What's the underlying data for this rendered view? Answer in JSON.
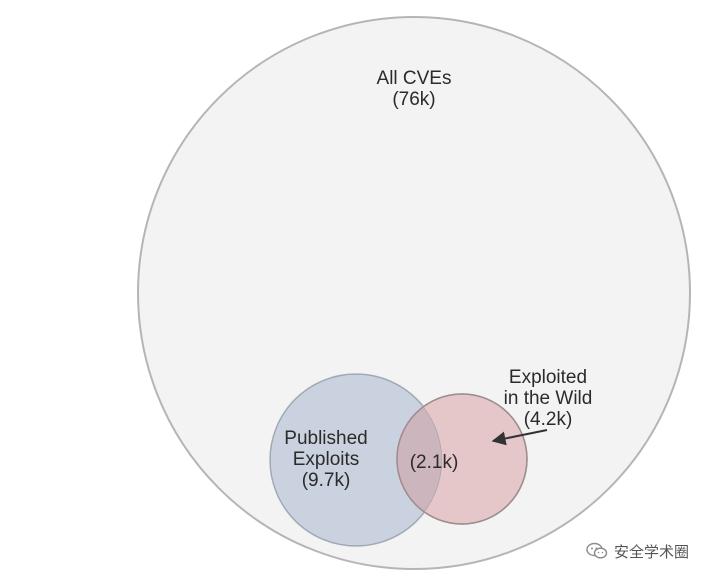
{
  "colors": {
    "outer_fill": "#f3f3f3",
    "outer_stroke": "#b5b5b5",
    "published_fill": "#c9d2de",
    "published_stroke": "#a9b1bc",
    "wild_fill": "#e5c7c9",
    "wild_stroke": "#b4a1a2",
    "overlap_fill": "#cdb5bd",
    "label_text": "#2b2b2b"
  },
  "all_cves": {
    "line1": "All CVEs",
    "line2": "(76k)"
  },
  "published_exploits": {
    "line1": "Published",
    "line2": "Exploits",
    "line3": "(9.7k)"
  },
  "exploited_in_wild": {
    "line1": "Exploited",
    "line2": "in the Wild",
    "line3": "(4.2k)"
  },
  "overlap": {
    "label": "(2.1k)"
  },
  "watermark": {
    "icon": "wechat-icon",
    "text": "安全学术圈"
  }
}
